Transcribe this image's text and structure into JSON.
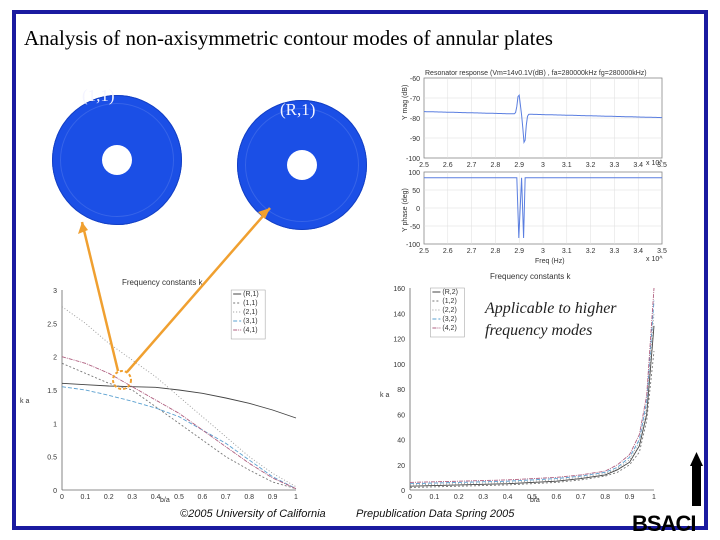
{
  "slide": {
    "title": "Analysis of non-axisymmetric contour modes of annular plates",
    "plate_labels": [
      "(1,1)",
      "(R,1)"
    ],
    "applicable_text_1": "Applicable to higher",
    "applicable_text_2": "frequency modes",
    "footer_left": "©2005 University of California",
    "footer_right": "Prepublication Data Spring 2005",
    "logo_text": "BSACI",
    "accent_color": "#1a1aa0",
    "arrow_color": "#f0a030",
    "plate_color": "#1b4fe6"
  },
  "response_plot": {
    "title": "Resonator response (Vm=14v0.1V(dB) , fa=280000kHz fg=280000kHz)",
    "top_ylabel": "Y mag (dB)",
    "bottom_ylabel": "Y phase (deg)",
    "xlabel": "Freq (Hz)",
    "x_exponent": "x 10^",
    "top_yticks": [
      "-60",
      "-70",
      "-80",
      "-90",
      "-100"
    ],
    "bottom_yticks": [
      "100",
      "50",
      "0",
      "-50",
      "-100"
    ],
    "xticks": [
      "2.5",
      "2.6",
      "2.7",
      "2.8",
      "2.9",
      "3",
      "3.1",
      "3.2",
      "3.3",
      "3.4",
      "3.5"
    ]
  },
  "chart_data": [
    {
      "type": "line",
      "title": "Frequency constants k",
      "xlabel": "b/a",
      "ylabel": "k a",
      "xlim": [
        0,
        1
      ],
      "ylim": [
        0,
        3
      ],
      "xticks": [
        "0",
        "0.1",
        "0.2",
        "0.3",
        "0.4",
        "0.5",
        "0.6",
        "0.7",
        "0.8",
        "0.9",
        "1"
      ],
      "yticks": [
        "3",
        "2.5",
        "2",
        "1.5",
        "1",
        "0.5",
        "0"
      ],
      "legend": [
        "(R,1)",
        "(1,1)",
        "(2,1)",
        "(3,1)",
        "(4,1)"
      ],
      "legend_position": "top-right",
      "series": [
        {
          "name": "(R,1)",
          "x": [
            0,
            0.1,
            0.2,
            0.3,
            0.4,
            0.5,
            0.6,
            0.7,
            0.8,
            0.9,
            1
          ],
          "values": [
            1.6,
            1.58,
            1.56,
            1.55,
            1.54,
            1.5,
            1.45,
            1.38,
            1.3,
            1.2,
            1.08
          ]
        },
        {
          "name": "(1,1)",
          "x": [
            0,
            0.1,
            0.2,
            0.3,
            0.4,
            0.5,
            0.6,
            0.7,
            0.8,
            0.9,
            1
          ],
          "values": [
            1.9,
            1.75,
            1.6,
            1.5,
            1.25,
            1.0,
            0.75,
            0.5,
            0.3,
            0.12,
            0.02
          ]
        },
        {
          "name": "(2,1)",
          "x": [
            0,
            0.1,
            0.2,
            0.3,
            0.4,
            0.5,
            0.6,
            0.7,
            0.8,
            0.9,
            1
          ],
          "values": [
            2.75,
            2.5,
            2.2,
            1.95,
            1.7,
            1.4,
            1.1,
            0.8,
            0.5,
            0.25,
            0.05
          ]
        },
        {
          "name": "(3,1)",
          "x": [
            0,
            0.1,
            0.2,
            0.3,
            0.4,
            0.5,
            0.6,
            0.7,
            0.8,
            0.9,
            1
          ],
          "values": [
            1.55,
            1.5,
            1.42,
            1.33,
            1.23,
            1.1,
            0.9,
            0.7,
            0.45,
            0.2,
            0.02
          ]
        },
        {
          "name": "(4,1)",
          "x": [
            0,
            0.1,
            0.2,
            0.3,
            0.4,
            0.5,
            0.6,
            0.7,
            0.8,
            0.9,
            1
          ],
          "values": [
            2.0,
            1.9,
            1.75,
            1.55,
            1.35,
            1.15,
            0.9,
            0.65,
            0.4,
            0.18,
            0.02
          ]
        }
      ]
    },
    {
      "type": "line",
      "title": "Frequency constants k",
      "xlabel": "b/a",
      "ylabel": "k a",
      "xlim": [
        0,
        1
      ],
      "ylim": [
        0,
        160
      ],
      "xticks": [
        "0",
        "0.1",
        "0.2",
        "0.3",
        "0.4",
        "0.5",
        "0.6",
        "0.7",
        "0.8",
        "0.9",
        "1"
      ],
      "yticks": [
        "160",
        "140",
        "120",
        "100",
        "80",
        "60",
        "40",
        "20",
        "0"
      ],
      "legend": [
        "(R,2)",
        "(1,2)",
        "(2,2)",
        "(3,2)",
        "(4,2)"
      ],
      "legend_position": "top-right",
      "series": [
        {
          "name": "(R,2)",
          "x": [
            0,
            0.2,
            0.4,
            0.6,
            0.7,
            0.8,
            0.85,
            0.9,
            0.94,
            0.97,
            1
          ],
          "values": [
            3,
            4,
            5,
            7,
            9,
            12,
            16,
            22,
            35,
            60,
            130
          ]
        },
        {
          "name": "(1,2)",
          "x": [
            0,
            0.2,
            0.4,
            0.6,
            0.7,
            0.8,
            0.85,
            0.9,
            0.94,
            0.97,
            1
          ],
          "values": [
            2,
            3,
            4,
            6,
            8,
            11,
            14,
            20,
            30,
            55,
            110
          ]
        },
        {
          "name": "(2,2)",
          "x": [
            0,
            0.2,
            0.4,
            0.6,
            0.7,
            0.8,
            0.85,
            0.9,
            0.94,
            0.97,
            1
          ],
          "values": [
            4,
            5,
            6,
            8,
            10,
            13,
            17,
            24,
            38,
            65,
            140
          ]
        },
        {
          "name": "(3,2)",
          "x": [
            0,
            0.2,
            0.4,
            0.6,
            0.7,
            0.8,
            0.85,
            0.9,
            0.94,
            0.97,
            1
          ],
          "values": [
            5,
            6,
            7,
            9,
            11,
            14,
            18,
            26,
            40,
            70,
            150
          ]
        },
        {
          "name": "(4,2)",
          "x": [
            0,
            0.2,
            0.4,
            0.6,
            0.7,
            0.8,
            0.85,
            0.9,
            0.94,
            0.97,
            1
          ],
          "values": [
            6,
            7,
            8,
            10,
            12,
            15,
            20,
            28,
            44,
            75,
            160
          ]
        }
      ]
    }
  ]
}
